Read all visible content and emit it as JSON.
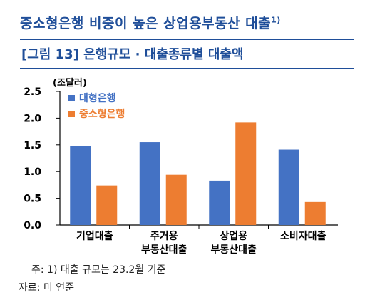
{
  "headline": {
    "text": "중소형은행 비중이 높은 상업용부동산 대출",
    "sup": "1)"
  },
  "figure_title": "[그림 13] 은행규모 · 대출종류별 대출액",
  "chart_data": {
    "type": "bar",
    "unit_label": "(조달러)",
    "categories": [
      [
        "기업대출"
      ],
      [
        "주거용",
        "부동산대출"
      ],
      [
        "상업용",
        "부동산대출"
      ],
      [
        "소비자대출"
      ]
    ],
    "series": [
      {
        "name": "대형은행",
        "color": "#4472c4",
        "values": [
          1.48,
          1.55,
          0.83,
          1.41
        ]
      },
      {
        "name": "중소형은행",
        "color": "#ed7d31",
        "values": [
          0.74,
          0.94,
          1.92,
          0.43
        ]
      }
    ],
    "ylim": [
      0,
      2.5
    ],
    "yticks": [
      "0.0",
      "0.5",
      "1.0",
      "1.5",
      "2.0",
      "2.5"
    ],
    "grid": false,
    "legend_position": "top-left"
  },
  "footnotes": [
    "주: 1) 대출 규모는 23.2월 기준",
    "자료: 미 연준"
  ]
}
